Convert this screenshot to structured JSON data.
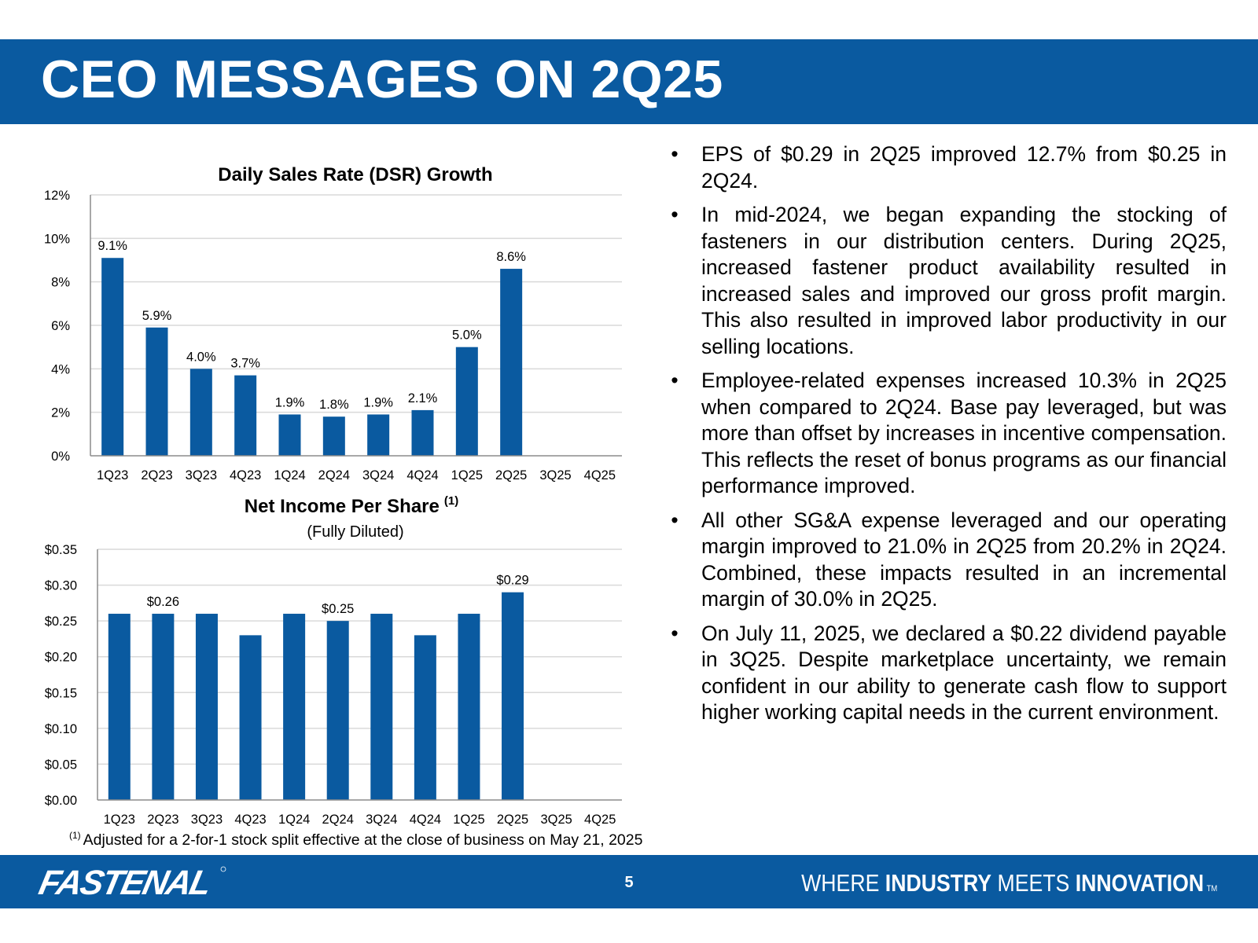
{
  "page": {
    "title": "CEO MESSAGES ON 2Q25",
    "page_number": "5",
    "brand": "FASTENAL",
    "tagline": {
      "w1": "WHERE",
      "w2": "INDUSTRY",
      "w3": "MEETS",
      "w4": "INNOVATION",
      "tm": "TM"
    }
  },
  "colors": {
    "brand_blue": "#0a5aa0",
    "bar_blue": "#0a5aa0",
    "gridline": "#d9d9d9"
  },
  "bullets": [
    {
      "marker": "•",
      "text": "EPS of $0.29 in 2Q25 improved 12.7% from $0.25 in 2Q24."
    },
    {
      "marker": "•",
      "text": "In mid-2024, we began expanding the stocking of fasteners in our distribution centers. During 2Q25, increased fastener product availability resulted in increased sales and improved our gross profit margin. This also resulted in improved labor productivity in our selling locations."
    },
    {
      "marker": "•",
      "text": "Employee-related expenses increased 10.3% in 2Q25 when compared to 2Q24. Base pay leveraged, but was more than offset by increases in incentive compensation. This reflects the reset of bonus programs as our financial performance improved."
    },
    {
      "marker": "•",
      "text": "All other SG&A expense leveraged and our operating margin improved to 21.0% in 2Q25 from 20.2% in 2Q24. Combined, these impacts resulted in an incremental margin of 30.0% in 2Q25."
    },
    {
      "marker": "•",
      "text": "On July 11, 2025, we declared a $0.22 dividend payable in 3Q25. Despite marketplace uncertainty, we remain confident in our ability to generate cash flow to support higher working capital needs in the current environment."
    }
  ],
  "footnote": {
    "marker": "(1)",
    "text": "Adjusted for a 2-for-1 stock split effective at the close of business on May 21, 2025"
  },
  "chart_data": [
    {
      "type": "bar",
      "title": "Daily Sales Rate (DSR) Growth",
      "categories": [
        "1Q23",
        "2Q23",
        "3Q23",
        "4Q23",
        "1Q24",
        "2Q24",
        "3Q24",
        "4Q24",
        "1Q25",
        "2Q25",
        "3Q25",
        "4Q25"
      ],
      "values": [
        9.1,
        5.9,
        4.0,
        3.7,
        1.9,
        1.8,
        1.9,
        2.1,
        5.0,
        8.6,
        null,
        null
      ],
      "data_labels": [
        "9.1%",
        "5.9%",
        "4.0%",
        "3.7%",
        "1.9%",
        "1.8%",
        "1.9%",
        "2.1%",
        "5.0%",
        "8.6%",
        "",
        ""
      ],
      "yticks": [
        0,
        2,
        4,
        6,
        8,
        10,
        12
      ],
      "ytick_labels": [
        "0%",
        "2%",
        "4%",
        "6%",
        "8%",
        "10%",
        "12%"
      ],
      "ylim": [
        0,
        12
      ],
      "grid": true,
      "legend": "none"
    },
    {
      "type": "bar",
      "title": "Net Income Per Share",
      "title_superscript": "(1)",
      "subtitle": "(Fully Diluted)",
      "categories": [
        "1Q23",
        "2Q23",
        "3Q23",
        "4Q23",
        "1Q24",
        "2Q24",
        "3Q24",
        "4Q24",
        "1Q25",
        "2Q25",
        "3Q25",
        "4Q25"
      ],
      "values": [
        0.26,
        0.26,
        0.26,
        0.23,
        0.26,
        0.25,
        0.26,
        0.23,
        0.26,
        0.29,
        null,
        null
      ],
      "data_labels": [
        "",
        "$0.26",
        "",
        "",
        "",
        "$0.25",
        "",
        "",
        "",
        "$0.29",
        "",
        ""
      ],
      "yticks": [
        0,
        0.05,
        0.1,
        0.15,
        0.2,
        0.25,
        0.3,
        0.35
      ],
      "ytick_labels": [
        "$0.00",
        "$0.05",
        "$0.10",
        "$0.15",
        "$0.20",
        "$0.25",
        "$0.30",
        "$0.35"
      ],
      "ylim": [
        0,
        0.35
      ],
      "grid": true,
      "legend": "none"
    }
  ]
}
